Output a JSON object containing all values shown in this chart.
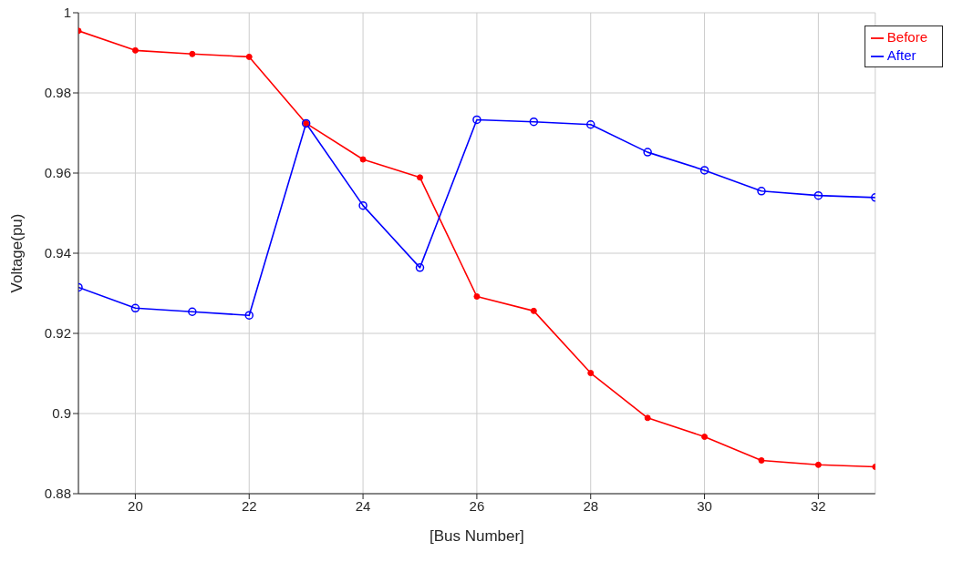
{
  "chart_data": {
    "type": "line",
    "xlabel": "[Bus Number]",
    "ylabel": "Voltage(pu)",
    "x": [
      19,
      20,
      21,
      22,
      23,
      24,
      25,
      26,
      27,
      28,
      29,
      30,
      31,
      32,
      33
    ],
    "series": [
      {
        "name": "Before",
        "color": "#ff0000",
        "values": [
          0.9955,
          0.9906,
          0.9897,
          0.989,
          0.9724,
          0.9634,
          0.9589,
          0.9292,
          0.9256,
          0.9101,
          0.8989,
          0.8942,
          0.8883,
          0.8872,
          0.8867
        ]
      },
      {
        "name": "After",
        "color": "#0000ff",
        "values": [
          0.9315,
          0.9263,
          0.9254,
          0.9245,
          0.9724,
          0.9519,
          0.9364,
          0.9733,
          0.9728,
          0.9721,
          0.9652,
          0.9607,
          0.9555,
          0.9544,
          0.9539
        ]
      }
    ],
    "xlim": [
      19,
      33
    ],
    "xticks": [
      20,
      22,
      24,
      26,
      28,
      30,
      32
    ],
    "ylim": [
      0.88,
      1
    ],
    "yticks": [
      0.88,
      0.9,
      0.92,
      0.94,
      0.96,
      0.98,
      1
    ],
    "grid": true,
    "legend": "top right",
    "marker": "circle",
    "line_style": "solid"
  }
}
